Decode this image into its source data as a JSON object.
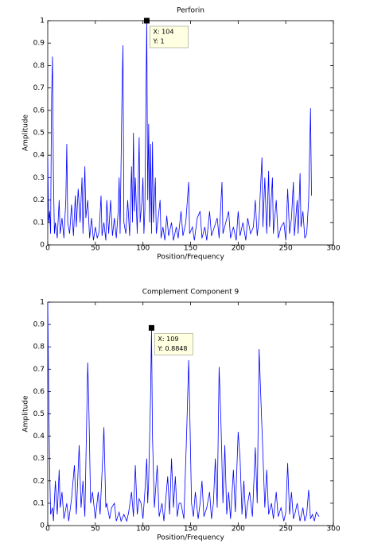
{
  "chart_data": [
    {
      "type": "line",
      "title": "Perforin",
      "x_label": "Position/Frequency",
      "y_label": "Amplitude",
      "xlim": [
        0,
        300
      ],
      "ylim": [
        0,
        1
      ],
      "xticks": [
        0,
        50,
        100,
        150,
        200,
        250,
        300
      ],
      "yticks": [
        0,
        0.1,
        0.2,
        0.3,
        0.4,
        0.5,
        0.6,
        0.7,
        0.8,
        0.9,
        1
      ],
      "series": [
        {
          "color": "#0000ff",
          "x": [
            0,
            1,
            2,
            3,
            4,
            5,
            6,
            7,
            8,
            10,
            12,
            13,
            15,
            17,
            19,
            20,
            21,
            23,
            25,
            27,
            29,
            30,
            32,
            34,
            36,
            37,
            39,
            40,
            42,
            44,
            46,
            48,
            50,
            52,
            54,
            56,
            57,
            59,
            61,
            62,
            64,
            66,
            68,
            70,
            72,
            74,
            75,
            76,
            78,
            79,
            80,
            82,
            84,
            86,
            88,
            89,
            90,
            91,
            92,
            94,
            96,
            97,
            99,
            100,
            101,
            102,
            104,
            105,
            106,
            107,
            108,
            109,
            110,
            111,
            113,
            114,
            116,
            118,
            119,
            121,
            123,
            125,
            127,
            130,
            132,
            135,
            137,
            140,
            142,
            145,
            148,
            149,
            152,
            154,
            157,
            160,
            162,
            165,
            167,
            170,
            172,
            175,
            178,
            180,
            183,
            184,
            187,
            190,
            192,
            195,
            198,
            200,
            202,
            205,
            208,
            210,
            213,
            216,
            218,
            220,
            222,
            225,
            226,
            228,
            230,
            232,
            233,
            236,
            237,
            240,
            242,
            245,
            248,
            250,
            252,
            254,
            256,
            258,
            259,
            262,
            263,
            265,
            266,
            268,
            270,
            272,
            274,
            276,
            277
          ],
          "values": [
            0.39,
            0.1,
            0.15,
            0.05,
            0.65,
            0.84,
            0.3,
            0.05,
            0.1,
            0.03,
            0.2,
            0.05,
            0.12,
            0.03,
            0.2,
            0.45,
            0.1,
            0.05,
            0.18,
            0.04,
            0.22,
            0.08,
            0.25,
            0.1,
            0.3,
            0.05,
            0.35,
            0.12,
            0.2,
            0.03,
            0.12,
            0.02,
            0.08,
            0.03,
            0.06,
            0.22,
            0.04,
            0.1,
            0.02,
            0.2,
            0.05,
            0.2,
            0.04,
            0.12,
            0.03,
            0.15,
            0.3,
            0.05,
            0.67,
            0.89,
            0.1,
            0.05,
            0.2,
            0.04,
            0.35,
            0.1,
            0.5,
            0.15,
            0.3,
            0.05,
            0.48,
            0.1,
            0.2,
            0.3,
            0.05,
            0.15,
            1,
            0.2,
            0.54,
            0.1,
            0.45,
            0.05,
            0.46,
            0.1,
            0.3,
            0.05,
            0.12,
            0.2,
            0.03,
            0.08,
            0.02,
            0.13,
            0.04,
            0.1,
            0.02,
            0.08,
            0.03,
            0.15,
            0.04,
            0.1,
            0.28,
            0.05,
            0.08,
            0.02,
            0.12,
            0.15,
            0.03,
            0.08,
            0.02,
            0.15,
            0.04,
            0.08,
            0.12,
            0.03,
            0.28,
            0.05,
            0.1,
            0.15,
            0.03,
            0.08,
            0.02,
            0.15,
            0.04,
            0.1,
            0.02,
            0.12,
            0.05,
            0.08,
            0.2,
            0.04,
            0.12,
            0.39,
            0.08,
            0.3,
            0.05,
            0.33,
            0.08,
            0.3,
            0.05,
            0.2,
            0.03,
            0.08,
            0.1,
            0.02,
            0.25,
            0.05,
            0.12,
            0.28,
            0.04,
            0.2,
            0.05,
            0.32,
            0.08,
            0.15,
            0.03,
            0.05,
            0.2,
            0.61,
            0.22
          ]
        }
      ],
      "datatip": {
        "x": 104,
        "y": 1,
        "label_x": "X: 104",
        "label_y": "Y: 1"
      }
    },
    {
      "type": "line",
      "title": "Complement Component 9",
      "x_label": "Position/Frequency",
      "y_label": "Amplitude",
      "xlim": [
        0,
        300
      ],
      "ylim": [
        0,
        1
      ],
      "xticks": [
        0,
        50,
        100,
        150,
        200,
        250,
        300
      ],
      "yticks": [
        0,
        0.1,
        0.2,
        0.3,
        0.4,
        0.5,
        0.6,
        0.7,
        0.8,
        0.9,
        1
      ],
      "series": [
        {
          "color": "#0000ff",
          "x": [
            0,
            1,
            2,
            3,
            5,
            6,
            8,
            10,
            12,
            13,
            15,
            17,
            20,
            22,
            25,
            28,
            30,
            33,
            35,
            37,
            39,
            42,
            43,
            45,
            47,
            50,
            53,
            55,
            58,
            59,
            61,
            62,
            65,
            67,
            70,
            72,
            75,
            77,
            80,
            83,
            85,
            88,
            90,
            92,
            94,
            96,
            98,
            100,
            102,
            104,
            105,
            106,
            108,
            109,
            110,
            112,
            115,
            117,
            120,
            122,
            124,
            126,
            128,
            130,
            132,
            134,
            136,
            138,
            140,
            143,
            146,
            148,
            149,
            151,
            153,
            155,
            158,
            160,
            162,
            164,
            167,
            170,
            172,
            174,
            176,
            178,
            180,
            182,
            184,
            186,
            188,
            190,
            192,
            195,
            197,
            200,
            202,
            204,
            206,
            208,
            210,
            212,
            215,
            218,
            220,
            222,
            224,
            226,
            228,
            230,
            232,
            235,
            237,
            240,
            242,
            245,
            248,
            250,
            252,
            254,
            256,
            258,
            260,
            262,
            265,
            268,
            270,
            272,
            274,
            276,
            278,
            280,
            282,
            285
          ],
          "values": [
            1,
            0.6,
            0.25,
            0.05,
            0.08,
            0.02,
            0.2,
            0.05,
            0.25,
            0.08,
            0.15,
            0.03,
            0.1,
            0.02,
            0.12,
            0.27,
            0.05,
            0.36,
            0.08,
            0.2,
            0.04,
            0.73,
            0.57,
            0.1,
            0.15,
            0.03,
            0.15,
            0.05,
            0.33,
            0.44,
            0.08,
            0.1,
            0.03,
            0.08,
            0.1,
            0.02,
            0.06,
            0.02,
            0.05,
            0.02,
            0.06,
            0.15,
            0.04,
            0.27,
            0.05,
            0.12,
            0.1,
            0.03,
            0.15,
            0.3,
            0.1,
            0.2,
            0.58,
            0.8848,
            0.4,
            0.08,
            0.27,
            0.04,
            0.1,
            0.02,
            0.12,
            0.22,
            0.05,
            0.3,
            0.08,
            0.22,
            0.04,
            0.1,
            0.1,
            0.03,
            0.43,
            0.74,
            0.55,
            0.1,
            0.04,
            0.15,
            0.03,
            0.1,
            0.2,
            0.04,
            0.08,
            0.15,
            0.03,
            0.1,
            0.3,
            0.08,
            0.71,
            0.45,
            0.1,
            0.36,
            0.05,
            0.15,
            0.03,
            0.25,
            0.06,
            0.42,
            0.3,
            0.05,
            0.2,
            0.03,
            0.1,
            0.15,
            0.04,
            0.35,
            0.1,
            0.79,
            0.55,
            0.32,
            0.08,
            0.25,
            0.05,
            0.1,
            0.03,
            0.15,
            0.04,
            0.08,
            0.02,
            0.06,
            0.28,
            0.05,
            0.15,
            0.03,
            0.06,
            0.1,
            0.02,
            0.08,
            0.02,
            0.05,
            0.16,
            0.03,
            0.05,
            0.02,
            0.06,
            0.04
          ]
        }
      ],
      "datatip": {
        "x": 109,
        "y": 0.8848,
        "label_x": "X: 109",
        "label_y": "Y: 0.8848"
      }
    }
  ]
}
